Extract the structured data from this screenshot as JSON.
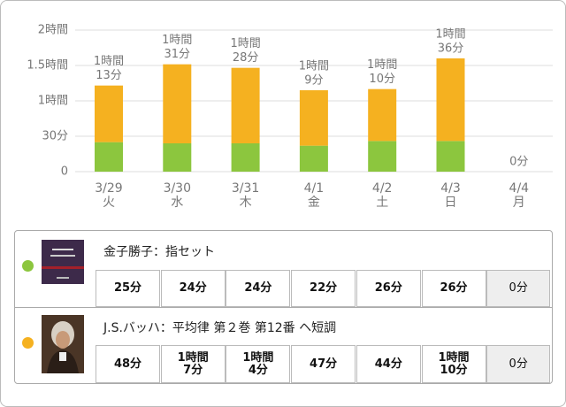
{
  "chart_data": {
    "type": "bar",
    "categories": [
      "3/29",
      "3/30",
      "3/31",
      "4/1",
      "4/2",
      "4/3",
      "4/4"
    ],
    "weekdays": [
      "火",
      "水",
      "木",
      "金",
      "土",
      "日",
      "月"
    ],
    "series": [
      {
        "name": "金子勝子：指セット",
        "color": "#8cc63e",
        "values": [
          25,
          24,
          24,
          22,
          26,
          26,
          0
        ]
      },
      {
        "name": "J.S.バッハ：平均律 第２巻 第12番 ヘ短調",
        "color": "#f5b120",
        "values": [
          48,
          67,
          64,
          47,
          44,
          70,
          0
        ]
      }
    ],
    "total_labels": [
      [
        "1時間",
        "13分"
      ],
      [
        "1時間",
        "31分"
      ],
      [
        "1時間",
        "28分"
      ],
      [
        "1時間",
        "9分"
      ],
      [
        "1時間",
        "10分"
      ],
      [
        "1時間",
        "36分"
      ],
      [
        "0分"
      ]
    ],
    "ylim": [
      0,
      120
    ],
    "yticks": [
      0,
      {
        "value": 30,
        "label": "30分"
      },
      {
        "value": 60,
        "label": "1時間"
      },
      {
        "value": 90,
        "label": "1.5時間"
      },
      {
        "value": 120,
        "label": "2時間"
      }
    ],
    "grid": true
  },
  "table": {
    "rows": [
      {
        "name": "金子勝子：指セット",
        "cells": [
          "25分",
          "24分",
          "24分",
          "22分",
          "26分",
          "26分",
          "0分"
        ]
      },
      {
        "name": "J.S.バッハ：平均律 第２巻 第12番 ヘ短調",
        "cells": [
          "48分",
          "1時間\n7分",
          "1時間\n4分",
          "47分",
          "44分",
          "1時間\n10分",
          "0分"
        ]
      }
    ]
  }
}
